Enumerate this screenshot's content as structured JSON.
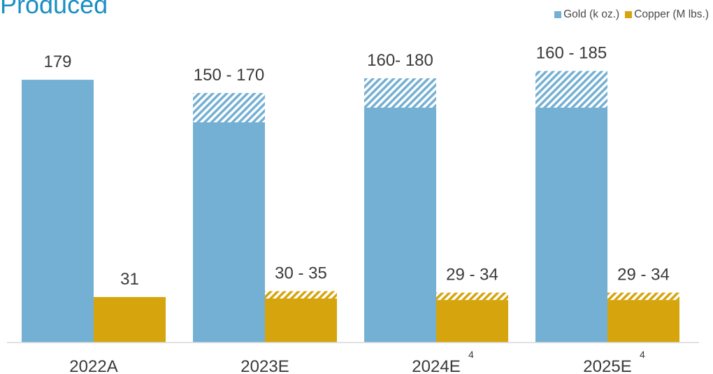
{
  "page": {
    "title": "Produced"
  },
  "chart_data": {
    "type": "bar",
    "categories": [
      "2022A",
      "2023E",
      "2024E",
      "2025E"
    ],
    "category_footnotes": [
      "",
      "",
      "4",
      "4"
    ],
    "series": [
      {
        "name": "Gold (k oz.)",
        "color": "#74b0d3",
        "low": [
          179,
          150,
          160,
          160
        ],
        "high": [
          179,
          170,
          180,
          185
        ],
        "labels": [
          "179",
          "150 - 170",
          "160- 180",
          "160 - 185"
        ]
      },
      {
        "name": "Copper (M lbs.)",
        "color": "#d6a40d",
        "low": [
          31,
          30,
          29,
          29
        ],
        "high": [
          31,
          35,
          34,
          34
        ],
        "labels": [
          "31",
          "30 - 35",
          "29 - 34",
          "29 - 34"
        ]
      }
    ],
    "range_style": "hatched",
    "legend_position": "top-right",
    "grid": false
  }
}
